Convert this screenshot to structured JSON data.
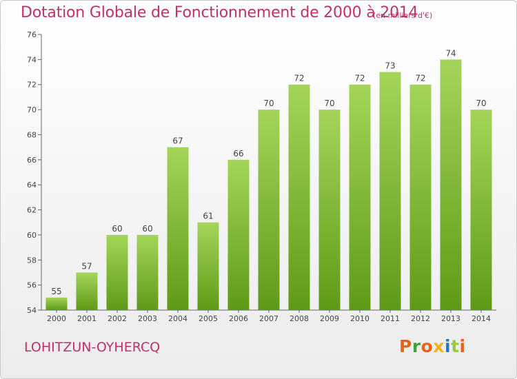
{
  "header": {
    "title": "Dotation Globale de Fonctionnement de 2000 à 2014",
    "unit": "(en milliers d'€)"
  },
  "footer": {
    "commune": "LOHITZUN-OYHERCQ",
    "brand": "Proxiti",
    "brand_colors": [
      "#e8641b",
      "#3da33a",
      "#e8641b",
      "#f2b21a",
      "#1f7bc4",
      "#9bc93a",
      "#e8641b"
    ]
  },
  "colors": {
    "bar_top": "#a4d55a",
    "bar_bottom": "#5f9a17",
    "accent": "#c0306a",
    "axis": "#666666",
    "grid": "#dddddd"
  },
  "chart_data": {
    "type": "bar",
    "categories": [
      "2000",
      "2001",
      "2002",
      "2003",
      "2004",
      "2005",
      "2006",
      "2007",
      "2008",
      "2009",
      "2010",
      "2011",
      "2012",
      "2013",
      "2014"
    ],
    "values": [
      55,
      57,
      60,
      60,
      67,
      61,
      66,
      70,
      72,
      70,
      72,
      73,
      72,
      74,
      70
    ],
    "yticks": [
      54,
      56,
      58,
      60,
      62,
      64,
      66,
      68,
      70,
      72,
      74,
      76
    ],
    "ylim": [
      54,
      76
    ],
    "grid": false
  }
}
